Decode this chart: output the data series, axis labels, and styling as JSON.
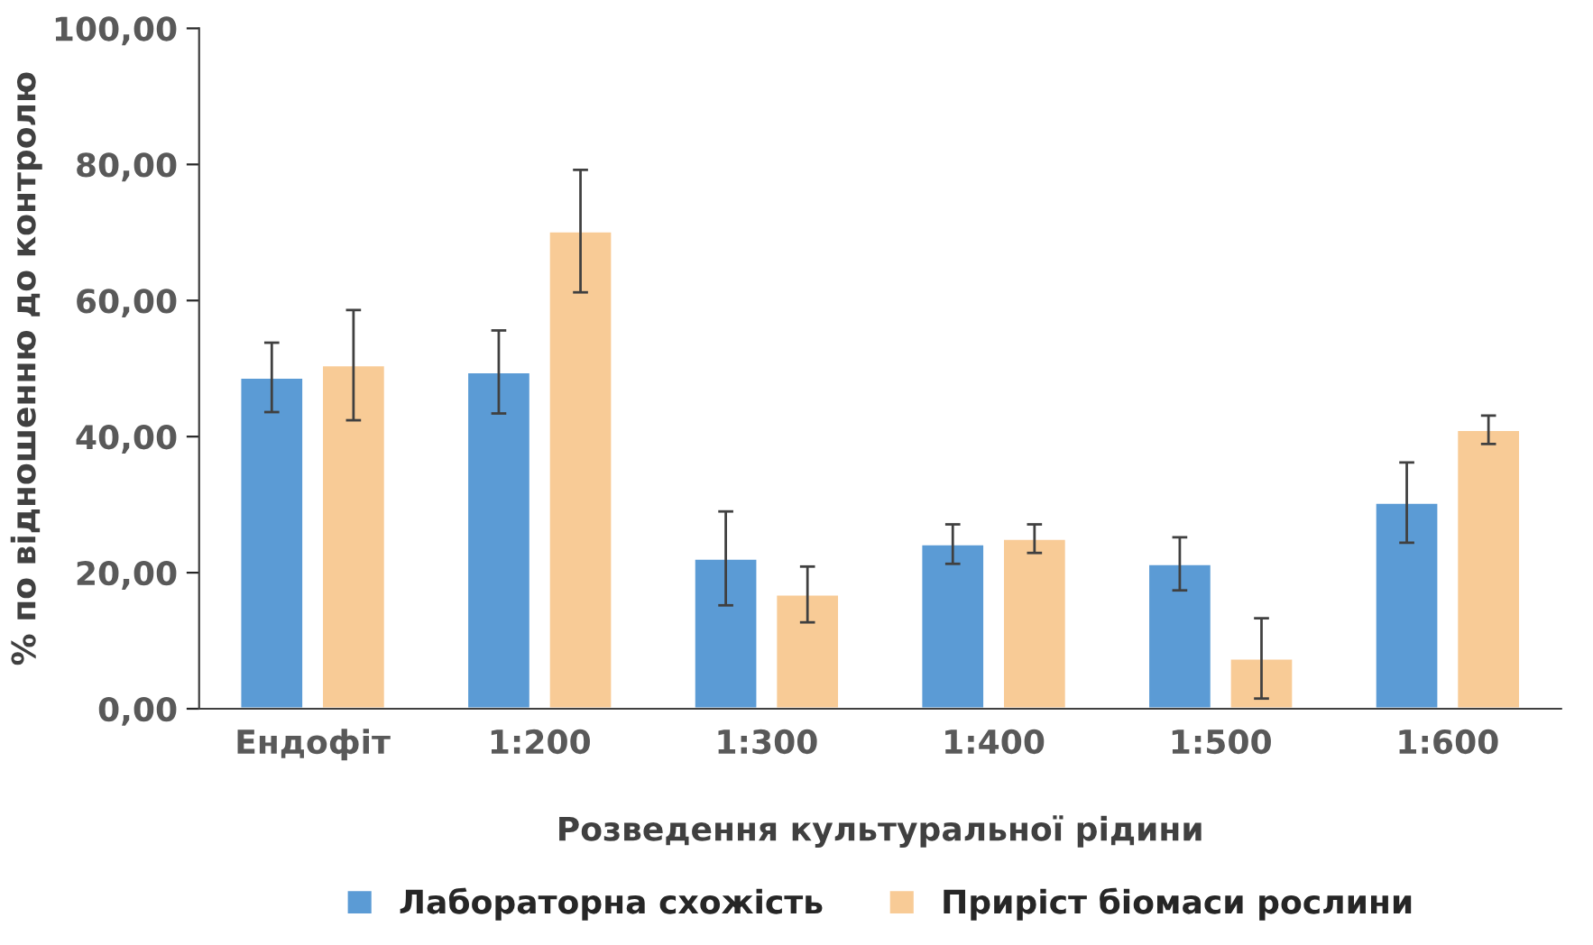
{
  "chart_data": {
    "type": "bar",
    "xlabel": "Розведення культуральної рідини",
    "ylabel": "% по відношенню до контролю",
    "categories": [
      "Ендофіт",
      "1:200",
      "1:300",
      "1:400",
      "1:500",
      "1:600"
    ],
    "series": [
      {
        "name": "Лабораторна схожість",
        "color": "#5b9bd5",
        "values": [
          48.7,
          49.5,
          22.1,
          24.2,
          21.3,
          30.3
        ],
        "errors": [
          5.1,
          6.1,
          6.9,
          2.9,
          3.9,
          5.9
        ]
      },
      {
        "name": "Приріст біомаси рослини",
        "color": "#f8cb96",
        "values": [
          50.5,
          70.2,
          16.8,
          25.0,
          7.4,
          41.0
        ],
        "errors": [
          8.1,
          9.0,
          4.1,
          2.1,
          5.9,
          2.1
        ]
      }
    ],
    "ylim": [
      0,
      100
    ],
    "yticks": [
      {
        "value": 0,
        "label": "0,00"
      },
      {
        "value": 20,
        "label": "20,00"
      },
      {
        "value": 40,
        "label": "40,00"
      },
      {
        "value": 60,
        "label": "60,00"
      },
      {
        "value": 80,
        "label": "80,00"
      },
      {
        "value": 100,
        "label": "100,00"
      }
    ],
    "legend": "bottom",
    "grid": false
  }
}
